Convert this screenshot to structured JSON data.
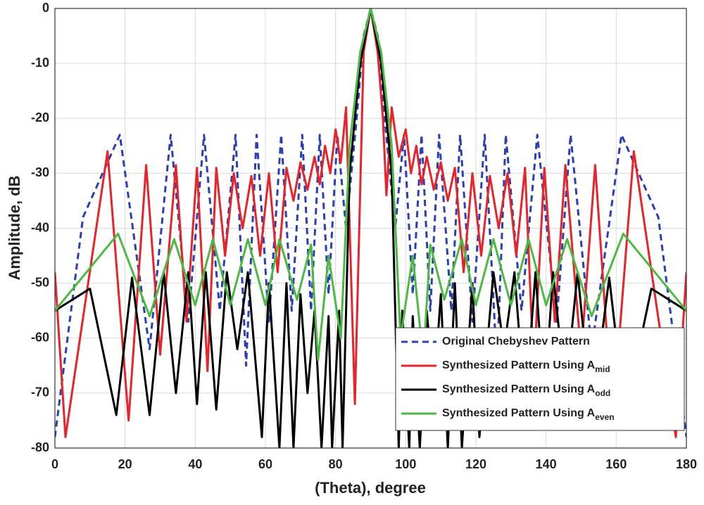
{
  "chart_data": {
    "type": "line",
    "xlabel": "(Theta), degree",
    "ylabel": "Amplitude, dB",
    "xlim": [
      0,
      180
    ],
    "xticks": [
      0,
      20,
      40,
      60,
      80,
      100,
      120,
      140,
      160,
      180
    ],
    "ylim": [
      -80,
      0
    ],
    "yticks": [
      0,
      -10,
      -20,
      -30,
      -40,
      -50,
      -60,
      -70,
      -80
    ],
    "grid": true,
    "legend": "lower right",
    "series": [
      {
        "name": "Original Chebyshev Pattern",
        "color": "#2b3fb0",
        "dashed": true,
        "x": [
          0,
          8,
          18.5,
          27,
          33,
          38,
          42.5,
          47,
          51.5,
          54.5,
          57.5,
          61,
          64.5,
          67.5,
          70.5,
          73,
          75.5,
          78,
          80.5,
          83,
          86,
          88,
          90,
          92,
          94,
          97,
          99.5,
          102,
          104.5,
          107,
          109.5,
          113,
          115.5,
          119,
          122.5,
          126,
          128.5,
          133,
          137.5,
          143,
          147,
          153,
          161.5,
          172,
          180
        ],
        "values": [
          -78,
          -38,
          -23,
          -62,
          -23,
          -57,
          -23,
          -55,
          -23,
          -65,
          -23,
          -57,
          -23,
          -55,
          -23,
          -55,
          -23,
          -52,
          -23,
          -40,
          -20,
          -5,
          0,
          -5,
          -20,
          -40,
          -23,
          -52,
          -23,
          -55,
          -23,
          -55,
          -23,
          -57,
          -23,
          -65,
          -23,
          -55,
          -23,
          -57,
          -23,
          -62,
          -23,
          -38,
          -78
        ]
      },
      {
        "name": "Synthesized Pattern Using A",
        "sub": "mid",
        "color": "#e8232a",
        "x": [
          0,
          3,
          15,
          21,
          26,
          30,
          34.5,
          37.5,
          40.5,
          43.5,
          46,
          48.5,
          51,
          53.5,
          56,
          58.5,
          61,
          63.5,
          66,
          68,
          70,
          72,
          74,
          75.5,
          77,
          78.5,
          80,
          81.5,
          83,
          85.5,
          88,
          90,
          92,
          93.5,
          94.5,
          96,
          98,
          100,
          101.5,
          103,
          104.5,
          106,
          108,
          110,
          112,
          114,
          116.5,
          119,
          121.5,
          124,
          126.5,
          129,
          131.5,
          134,
          136.5,
          139.5,
          142.5,
          145.5,
          150,
          154,
          159,
          165,
          177,
          180
        ],
        "values": [
          -48,
          -78,
          -26,
          -75,
          -28.5,
          -63,
          -28.5,
          -57,
          -29,
          -66,
          -29,
          -45,
          -30,
          -40,
          -30.5,
          -45,
          -30,
          -48,
          -29,
          -35,
          -28,
          -33,
          -27,
          -32,
          -25,
          -30,
          -22,
          -28,
          -18,
          -72,
          -8,
          0,
          -8,
          -20,
          -34,
          -18,
          -27,
          -22,
          -30,
          -25,
          -32,
          -27,
          -33,
          -28,
          -35,
          -29,
          -48,
          -30,
          -45,
          -30.5,
          -40,
          -30,
          -45,
          -29,
          -66,
          -29,
          -57,
          -28.5,
          -63,
          -28.5,
          -75,
          -26,
          -78,
          -48
        ]
      },
      {
        "name": "Synthesized Pattern Using A",
        "sub": "odd",
        "color": "#000000",
        "x": [
          0,
          10,
          17.5,
          22,
          27,
          31,
          34.5,
          38,
          40.5,
          43,
          46,
          49,
          52,
          55,
          59,
          61,
          64,
          66,
          68,
          70,
          72,
          74,
          76,
          78,
          79,
          81,
          82,
          84,
          87,
          90,
          93,
          96,
          98,
          99,
          101,
          102,
          104,
          106,
          108,
          110,
          112,
          114,
          116,
          119,
          121,
          125,
          128,
          131,
          134,
          137,
          139.5,
          142,
          145.5,
          149,
          153,
          158,
          162.5,
          170,
          180
        ],
        "values": [
          -55,
          -51,
          -74,
          -49,
          -74,
          -48,
          -70,
          -48,
          -72,
          -48,
          -73,
          -48,
          -62,
          -48,
          -78,
          -50,
          -80,
          -50,
          -80,
          -52,
          -70,
          -55,
          -80,
          -56,
          -80,
          -55,
          -80,
          -30,
          -10,
          0,
          -10,
          -30,
          -80,
          -55,
          -80,
          -56,
          -80,
          -55,
          -70,
          -52,
          -80,
          -50,
          -80,
          -50,
          -78,
          -48,
          -62,
          -48,
          -73,
          -48,
          -72,
          -48,
          -70,
          -48,
          -74,
          -49,
          -74,
          -51,
          -55
        ]
      },
      {
        "name": "Synthesized Pattern Using A",
        "sub": "even",
        "color": "#4cb944",
        "x": [
          0,
          18,
          27,
          34,
          40,
          45,
          50,
          55,
          60,
          64,
          69,
          73,
          75,
          78,
          81.5,
          84,
          87,
          90,
          93,
          96,
          98.5,
          102,
          105,
          107,
          111,
          116,
          120,
          125,
          130,
          135,
          140,
          146,
          153,
          162,
          180
        ],
        "values": [
          -55,
          -41,
          -56,
          -42,
          -54,
          -42,
          -54,
          -42,
          -54,
          -42,
          -53,
          -43,
          -64,
          -45,
          -60,
          -25,
          -8,
          0,
          -8,
          -25,
          -60,
          -45,
          -64,
          -43,
          -53,
          -42,
          -54,
          -42,
          -54,
          -42,
          -54,
          -42,
          -56,
          -41,
          -55
        ]
      }
    ]
  }
}
